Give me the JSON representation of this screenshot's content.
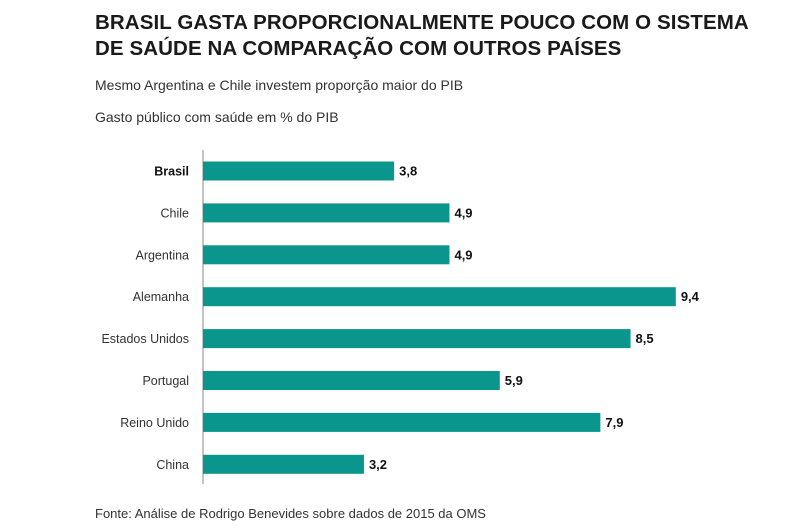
{
  "chart_data": {
    "type": "bar",
    "orientation": "horizontal",
    "title": "BRASIL GASTA PROPORCIONALMENTE POUCO COM O SISTEMA DE SAÚDE NA COMPARAÇÃO COM OUTROS PAÍSES",
    "subtitle": "Mesmo Argentina e Chile investem proporção maior do PIB",
    "description": "Gasto público com saúde em % do PIB",
    "source": "Fonte: Análise de Rodrigo Benevides sobre dados de 2015 da OMS",
    "categories": [
      "Brasil",
      "Chile",
      "Argentina",
      "Alemanha",
      "Estados Unidos",
      "Portugal",
      "Reino Unido",
      "China"
    ],
    "values": [
      3.8,
      4.9,
      4.9,
      9.4,
      8.5,
      5.9,
      7.9,
      3.2
    ],
    "value_labels": [
      "3,8",
      "4,9",
      "4,9",
      "9,4",
      "8,5",
      "5,9",
      "7,9",
      "3,2"
    ],
    "highlight_category": "Brasil",
    "xlim": [
      0,
      10
    ],
    "grid": false,
    "bar_color": "#0a958d",
    "axis_color": "#888888"
  }
}
